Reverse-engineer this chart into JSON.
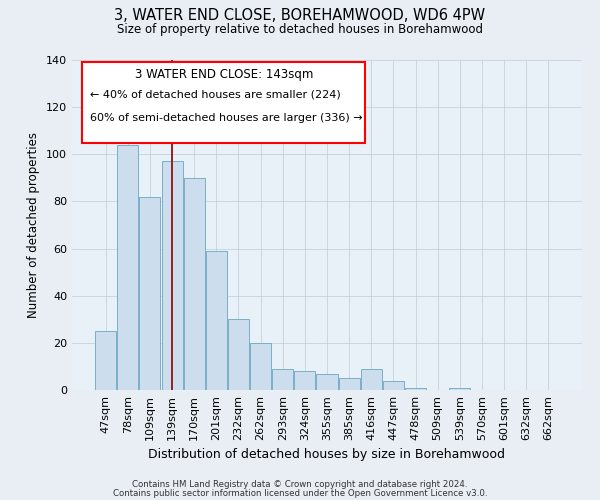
{
  "title": "3, WATER END CLOSE, BOREHAMWOOD, WD6 4PW",
  "subtitle": "Size of property relative to detached houses in Borehamwood",
  "xlabel": "Distribution of detached houses by size in Borehamwood",
  "ylabel": "Number of detached properties",
  "bar_labels": [
    "47sqm",
    "78sqm",
    "109sqm",
    "139sqm",
    "170sqm",
    "201sqm",
    "232sqm",
    "262sqm",
    "293sqm",
    "324sqm",
    "355sqm",
    "385sqm",
    "416sqm",
    "447sqm",
    "478sqm",
    "509sqm",
    "539sqm",
    "570sqm",
    "601sqm",
    "632sqm",
    "662sqm"
  ],
  "bar_values": [
    25,
    104,
    82,
    97,
    90,
    59,
    30,
    20,
    9,
    8,
    7,
    5,
    9,
    4,
    1,
    0,
    1,
    0,
    0,
    0,
    0
  ],
  "bar_color": "#ccdded",
  "bar_edgecolor": "#7aafc8",
  "property_line_index": 3,
  "ylim": [
    0,
    140
  ],
  "yticks": [
    0,
    20,
    40,
    60,
    80,
    100,
    120,
    140
  ],
  "annotation_title": "3 WATER END CLOSE: 143sqm",
  "annotation_line1": "← 40% of detached houses are smaller (224)",
  "annotation_line2": "60% of semi-detached houses are larger (336) →",
  "footer_line1": "Contains HM Land Registry data © Crown copyright and database right 2024.",
  "footer_line2": "Contains public sector information licensed under the Open Government Licence v3.0.",
  "bg_color": "#e8eef4",
  "plot_bg_color": "#e8f0f8"
}
